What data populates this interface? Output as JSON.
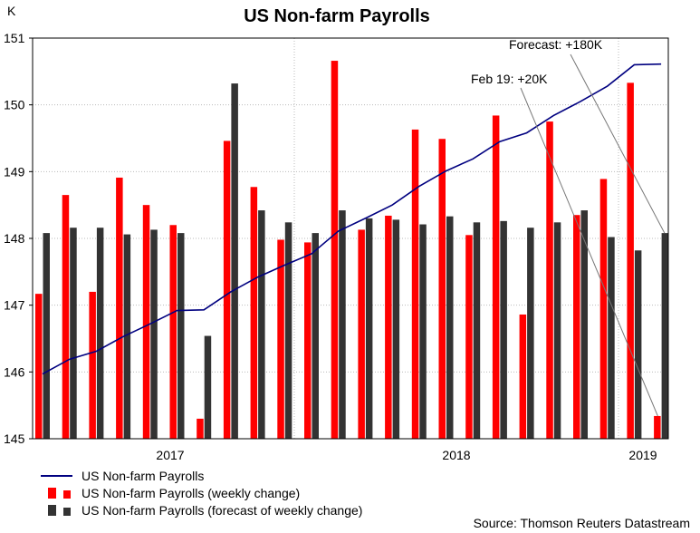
{
  "chart_data": {
    "type": "bar",
    "title": "US Non-farm Payrolls",
    "ylabel": "K",
    "ylim": [
      145,
      151
    ],
    "yticks": [
      145,
      146,
      147,
      148,
      149,
      150,
      151
    ],
    "xticks": [
      "2017",
      "2018",
      "2019"
    ],
    "grid": true,
    "series": [
      {
        "name": "US Non-farm Payrolls",
        "kind": "line",
        "color": "#000080",
        "values": [
          145.97,
          146.19,
          146.31,
          146.53,
          146.72,
          146.92,
          146.93,
          147.2,
          147.42,
          147.6,
          147.77,
          148.11,
          148.3,
          148.5,
          148.78,
          149.01,
          149.19,
          149.45,
          149.58,
          149.84,
          150.05,
          150.28,
          150.6,
          150.61
        ]
      },
      {
        "name": "US Non-farm Payrolls (weekly change)",
        "kind": "bar",
        "color": "#ff0000",
        "values": [
          147.17,
          148.65,
          147.2,
          148.91,
          148.5,
          148.2,
          145.3,
          149.46,
          148.77,
          147.98,
          147.94,
          150.66,
          148.13,
          148.34,
          149.63,
          149.49,
          148.05,
          149.84,
          146.86,
          149.75,
          148.35,
          148.89,
          150.33,
          145.34
        ]
      },
      {
        "name": "US Non-farm Payrolls (forecast of weekly change)",
        "kind": "bar",
        "color": "#333333",
        "values": [
          148.08,
          148.16,
          148.16,
          148.06,
          148.13,
          148.08,
          146.54,
          150.32,
          148.42,
          148.24,
          148.08,
          148.42,
          148.3,
          148.28,
          148.21,
          148.33,
          148.24,
          148.26,
          148.16,
          148.24,
          148.42,
          148.02,
          147.82,
          148.08
        ]
      }
    ],
    "annotations": [
      {
        "text": "Forecast: +180K",
        "target_index": 23,
        "target_series": 2
      },
      {
        "text": "Feb 19: +20K",
        "target_index": 23,
        "target_series": 1
      }
    ],
    "source": "Source: Thomson Reuters Datastream"
  }
}
